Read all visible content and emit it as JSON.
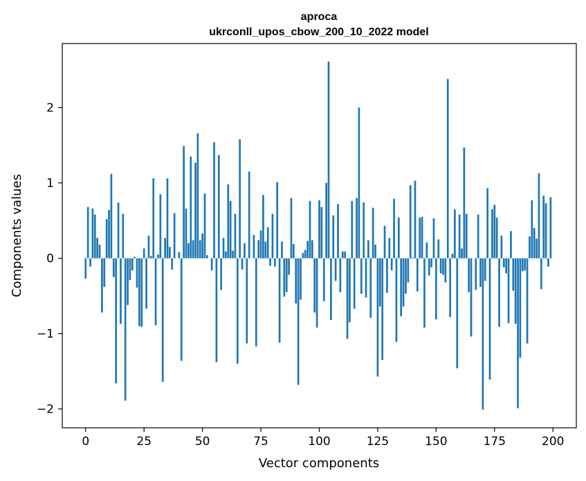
{
  "chart_data": {
    "type": "bar",
    "title_line1": "aproca",
    "title_line2": "ukrconll_upos_cbow_200_10_2022 model",
    "xlabel": "Vector components",
    "ylabel": "Components values",
    "xlim": [
      -10,
      210
    ],
    "ylim": [
      -2.25,
      2.85
    ],
    "xticks": [
      0,
      25,
      50,
      75,
      100,
      125,
      150,
      175,
      200
    ],
    "xtick_labels": [
      "0",
      "25",
      "50",
      "75",
      "100",
      "125",
      "150",
      "175",
      "200"
    ],
    "yticks": [
      -2,
      -1,
      0,
      1,
      2
    ],
    "ytick_labels": [
      "−2",
      "−1",
      "0",
      "1",
      "2"
    ],
    "grid": false,
    "bar_color": "#1f77b4",
    "values": [
      -0.27,
      0.68,
      -0.11,
      0.66,
      0.58,
      0.27,
      0.18,
      -0.72,
      -0.38,
      0.52,
      0.64,
      1.12,
      -0.25,
      -1.66,
      0.74,
      -0.87,
      0.59,
      -1.89,
      -0.62,
      -0.29,
      -0.16,
      0.02,
      -0.39,
      -0.9,
      -0.91,
      0.13,
      -0.67,
      0.3,
      0.03,
      1.06,
      -0.89,
      0.05,
      0.85,
      -1.64,
      0.27,
      1.06,
      0.15,
      -0.15,
      0.6,
      0.0,
      0.08,
      -1.36,
      1.49,
      0.66,
      0.2,
      1.35,
      0.24,
      1.27,
      1.66,
      0.24,
      0.33,
      0.86,
      0.04,
      0.0,
      -0.16,
      1.54,
      -1.38,
      1.37,
      -0.42,
      0.27,
      0.09,
      0.98,
      0.76,
      0.1,
      0.59,
      -1.4,
      1.58,
      -0.15,
      0.2,
      -1.13,
      1.15,
      0.0,
      0.31,
      -1.17,
      0.24,
      0.37,
      0.84,
      0.22,
      0.41,
      -0.1,
      0.59,
      -0.11,
      1.01,
      -1.12,
      0.22,
      -0.51,
      -0.45,
      -0.22,
      0.8,
      0.19,
      -0.6,
      -1.68,
      -0.55,
      0.07,
      0.11,
      0.23,
      0.76,
      0.24,
      -0.72,
      -0.92,
      0.77,
      0.68,
      -0.57,
      1.0,
      2.61,
      -0.82,
      0.57,
      -0.3,
      0.72,
      -0.45,
      0.09,
      0.09,
      -1.07,
      -0.85,
      0.76,
      -0.67,
      0.8,
      2.0,
      -0.47,
      0.74,
      -0.52,
      0.24,
      -0.79,
      0.67,
      0.18,
      -1.57,
      -0.64,
      -1.35,
      0.43,
      -0.46,
      0.27,
      -0.16,
      0.79,
      -1.11,
      0.54,
      -0.77,
      -0.64,
      -0.47,
      -0.32,
      0.97,
      0.01,
      1.03,
      -0.44,
      0.54,
      0.55,
      -0.92,
      0.21,
      -0.23,
      -0.12,
      0.53,
      -0.81,
      0.25,
      -0.2,
      -0.22,
      -0.32,
      2.38,
      -0.78,
      0.06,
      0.65,
      -1.46,
      0.58,
      0.13,
      1.47,
      0.59,
      -0.45,
      -1.04,
      0.0,
      -0.42,
      0.58,
      -0.38,
      -2.01,
      -0.3,
      0.93,
      -1.61,
      0.65,
      0.71,
      0.54,
      -0.91,
      0.3,
      -0.12,
      -0.2,
      -0.86,
      0.36,
      -0.43,
      -0.87,
      -1.99,
      -1.32,
      -0.17,
      -0.16,
      -1.13,
      0.29,
      0.77,
      0.4,
      0.26,
      1.13,
      -0.41,
      0.83,
      0.73,
      -0.11,
      0.81
    ]
  }
}
